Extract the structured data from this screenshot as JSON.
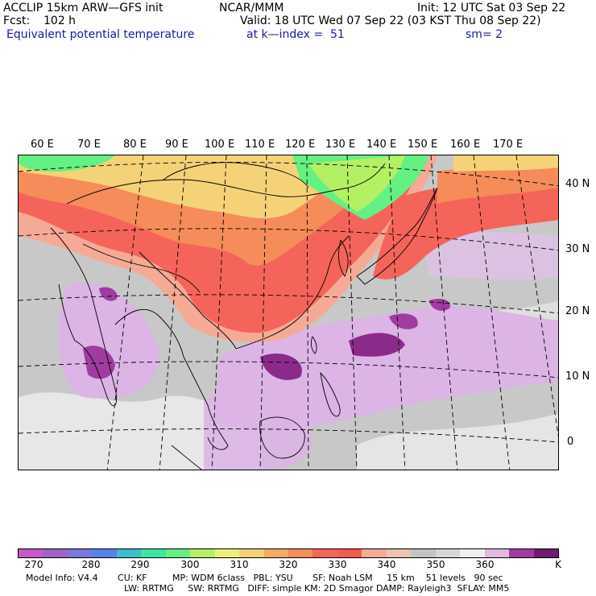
{
  "header": {
    "model": "ACCLIP 15km ARW—GFS init",
    "org": "NCAR/MMM",
    "init": "Init: 12 UTC Sat 03 Sep 22",
    "fcst_label": "Fcst:",
    "fcst_value": "102 h",
    "valid": "Valid: 18 UTC Wed 07 Sep 22 (03 KST Thu 08 Sep 22)",
    "field": "Equivalent potential temperature",
    "level": "at k—index =  51",
    "smooth": "sm= 2"
  },
  "lon_labels": [
    "60 E",
    "70 E",
    "80 E",
    "90 E",
    "100 E",
    "110 E",
    "120 E",
    "130 E",
    "140 E",
    "150 E",
    "160 E",
    "170 E"
  ],
  "lat_labels": [
    "40 N",
    "30 N",
    "20 N",
    "10 N",
    "0"
  ],
  "colorbar": {
    "colors": [
      "#c85ac8",
      "#a064c8",
      "#7a78dc",
      "#5a82e6",
      "#3cbec8",
      "#3ce6a0",
      "#64f082",
      "#b4f064",
      "#ebf078",
      "#f5d278",
      "#f5aa64",
      "#f58c5a",
      "#f5645a",
      "#f55a50",
      "#f5aa96",
      "#ebc3af",
      "#c3c3c3",
      "#d7d7d7",
      "#f0f0f0",
      "#e1b9e1",
      "#a03ca0",
      "#6e1e6e"
    ],
    "labels": [
      "270",
      "280",
      "290",
      "300",
      "310",
      "320",
      "330",
      "340",
      "350",
      "360",
      "K"
    ]
  },
  "footer": {
    "line1": "Model Info: V4.4       CU: KF         MP: WDM 6class   PBL: YSU       SF: Noah LSM     15 km    51 levels   90 sec",
    "line2": "LW: RRTMG     SW: RRTMG   DIFF: simple KM: 2D Smagor DAMP: Rayleigh3  SFLAY: MM5"
  }
}
